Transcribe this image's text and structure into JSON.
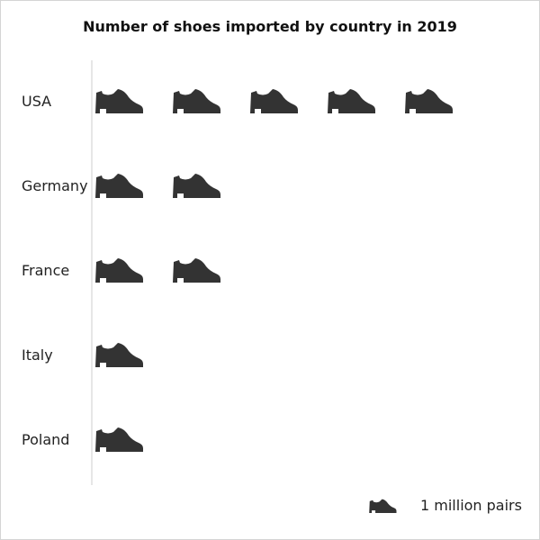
{
  "chart_data": {
    "type": "pictograph",
    "title": "Number of shoes imported by country in 2019",
    "categories": [
      "USA",
      "Germany",
      "France",
      "Italy",
      "Poland"
    ],
    "values": [
      5,
      2,
      2,
      1,
      1
    ],
    "icon": "shoe-icon",
    "icon_color": "#333333",
    "unit_value": 1,
    "legend": {
      "label": "1 million pairs",
      "position": "bottom-right"
    },
    "axis_line_color": "#cccccc"
  }
}
